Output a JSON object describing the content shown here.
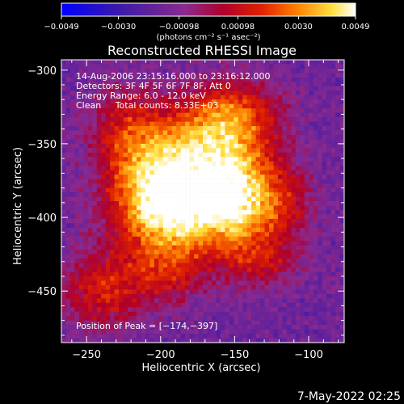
{
  "chart_data": {
    "type": "heatmap",
    "title": "Reconstructed RHESSI Image",
    "xlabel": "Heliocentric X (arcsec)",
    "ylabel": "Heliocentric Y (arcsec)",
    "xlim": [
      -267,
      -76
    ],
    "ylim": [
      -485,
      -293
    ],
    "x_ticks": [
      -250,
      -200,
      -150,
      -100
    ],
    "x_tick_labels": [
      "−250",
      "−200",
      "−150",
      "−100"
    ],
    "y_ticks": [
      -300,
      -350,
      -400,
      -450
    ],
    "y_tick_labels": [
      "−300",
      "−350",
      "−400",
      "−450"
    ],
    "colorbar": {
      "min": -0.0049,
      "max": 0.0049,
      "ticks": [
        -0.0049,
        -0.003,
        -0.00098,
        0.00098,
        0.003,
        0.0049
      ],
      "tick_labels": [
        "−0.0049",
        "−0.0030",
        "−0.00098",
        "0.00098",
        "0.0030",
        "0.0049"
      ],
      "units_label": "(photons cm⁻² s⁻¹ asec⁻²)"
    },
    "annotations": [
      "14-Aug-2006 23:15:16.000 to 23:16:12.000",
      "Detectors: 3F 4F 5F 6F 7F 8F, Att 0",
      "Energy Range: 6.0 - 12.0 keV",
      "Clean     Total counts: 8.33E+03"
    ],
    "peak_label": "Position of Peak = [−174,−397]",
    "peak_position": [
      -174,
      -397
    ],
    "blobs": [
      {
        "x": -175,
        "y": -390,
        "sx": 30,
        "sy": 26,
        "v": 0.0049
      },
      {
        "x": -205,
        "y": -385,
        "sx": 22,
        "sy": 30,
        "v": 0.004
      },
      {
        "x": -145,
        "y": -385,
        "sx": 20,
        "sy": 24,
        "v": 0.0034
      },
      {
        "x": -165,
        "y": -345,
        "sx": 28,
        "sy": 18,
        "v": 0.0032
      },
      {
        "x": -225,
        "y": -340,
        "sx": 18,
        "sy": 22,
        "v": 0.0022
      },
      {
        "x": -150,
        "y": -325,
        "sx": 22,
        "sy": 16,
        "v": 0.0024
      },
      {
        "x": -240,
        "y": -450,
        "sx": 20,
        "sy": 18,
        "v": 0.003
      },
      {
        "x": -130,
        "y": -430,
        "sx": 18,
        "sy": 14,
        "v": 0.002
      },
      {
        "x": -195,
        "y": -440,
        "sx": 16,
        "sy": 14,
        "v": 0.0018
      },
      {
        "x": -115,
        "y": -390,
        "sx": 14,
        "sy": 16,
        "v": 0.0016
      }
    ]
  },
  "footer_date": "7-May-2022 02:25"
}
